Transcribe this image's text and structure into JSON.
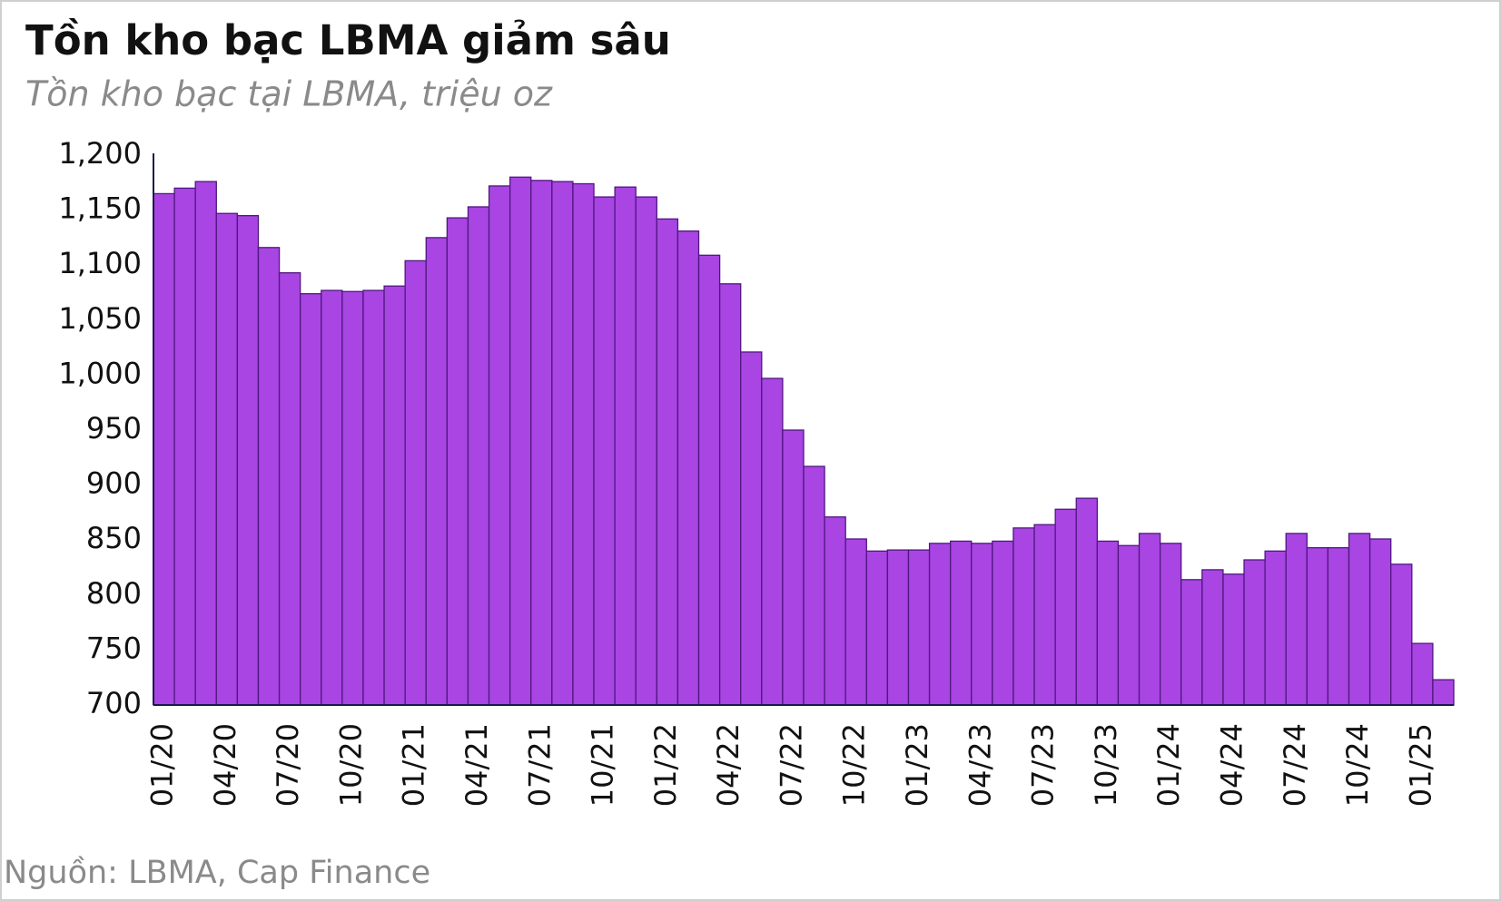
{
  "chart_data": {
    "type": "bar",
    "title": "Tồn kho bạc LBMA giảm sâu",
    "subtitle": "Tồn kho bạc tại LBMA, triệu oz",
    "source": "Nguồn: LBMA, Cap Finance",
    "categories": [
      "01/20",
      null,
      null,
      "04/20",
      null,
      null,
      "07/20",
      null,
      null,
      "10/20",
      null,
      null,
      "01/21",
      null,
      null,
      "04/21",
      null,
      null,
      "07/21",
      null,
      null,
      "10/21",
      null,
      null,
      "01/22",
      null,
      null,
      "04/22",
      null,
      null,
      "07/22",
      null,
      null,
      "10/22",
      null,
      null,
      "01/23",
      null,
      null,
      "04/23",
      null,
      null,
      "07/23",
      null,
      null,
      "10/23",
      null,
      null,
      "01/24",
      null,
      null,
      "04/24",
      null,
      null,
      "07/24",
      null,
      null,
      "10/24",
      null,
      null,
      "01/25",
      null
    ],
    "values": [
      1165,
      1170,
      1176,
      1147,
      1145,
      1116,
      1093,
      1074,
      1077,
      1076,
      1077,
      1081,
      1104,
      1125,
      1143,
      1153,
      1172,
      1180,
      1177,
      1176,
      1174,
      1162,
      1171,
      1162,
      1142,
      1131,
      1109,
      1083,
      1021,
      997,
      950,
      917,
      871,
      851,
      840,
      841,
      841,
      847,
      849,
      847,
      849,
      861,
      864,
      878,
      888,
      849,
      845,
      856,
      847,
      814,
      823,
      819,
      832,
      840,
      856,
      843,
      843,
      856,
      851,
      828,
      756,
      723
    ],
    "color": "#a945e3",
    "ylim": [
      700,
      1200
    ],
    "yticks": [
      700,
      750,
      800,
      850,
      900,
      950,
      {
        "value": 1000,
        "label": "1,000"
      },
      {
        "value": 1050,
        "label": "1,050"
      },
      {
        "value": 1100,
        "label": "1,100"
      },
      {
        "value": 1150,
        "label": "1,150"
      },
      {
        "value": 1200,
        "label": "1,200"
      }
    ],
    "grid": false
  }
}
